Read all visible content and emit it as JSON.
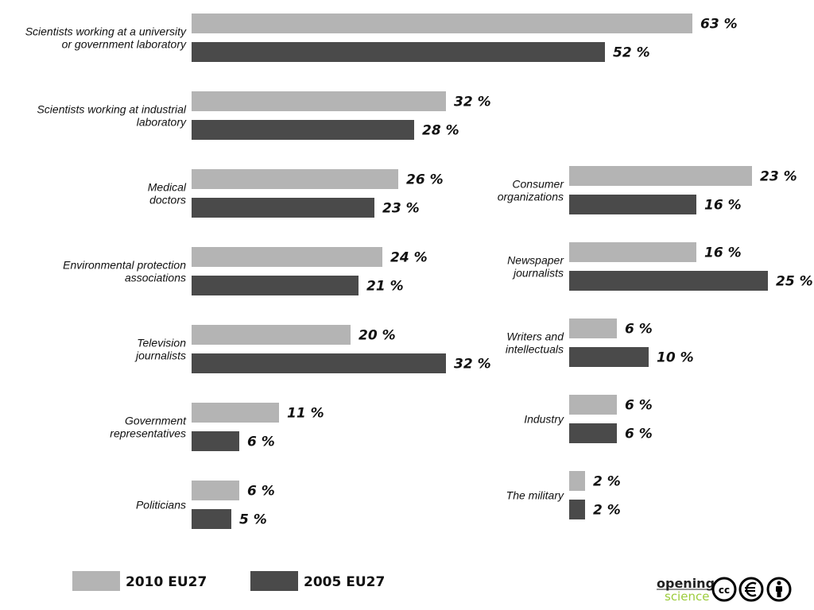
{
  "chart_data": {
    "type": "bar",
    "orientation": "horizontal",
    "value_suffix": " %",
    "series": [
      {
        "name": "2010 EU27",
        "color": "#b4b4b4"
      },
      {
        "name": "2005 EU27",
        "color": "#4a4a4a"
      }
    ],
    "groups": [
      {
        "column": "left",
        "categories": [
          {
            "label": [
              "Scientists working at a university",
              "or government laboratory"
            ],
            "values": [
              63,
              52
            ]
          },
          {
            "label": [
              "Scientists working at industrial",
              "laboratory"
            ],
            "values": [
              32,
              28
            ]
          },
          {
            "label": [
              "Medical",
              "doctors"
            ],
            "values": [
              26,
              23
            ]
          },
          {
            "label": [
              "Environmental protection",
              "associations"
            ],
            "values": [
              24,
              21
            ]
          },
          {
            "label": [
              "Television",
              "journalists"
            ],
            "values": [
              20,
              32
            ]
          },
          {
            "label": [
              "Government",
              "representatives"
            ],
            "values": [
              11,
              6
            ]
          },
          {
            "label": [
              "Politicians"
            ],
            "values": [
              6,
              5
            ]
          }
        ]
      },
      {
        "column": "right",
        "categories": [
          {
            "label": [
              "Consumer",
              "organizations"
            ],
            "values": [
              23,
              16
            ]
          },
          {
            "label": [
              "Newspaper",
              "journalists"
            ],
            "values": [
              16,
              25
            ]
          },
          {
            "label": [
              "Writers and",
              "intellectuals"
            ],
            "values": [
              6,
              10
            ]
          },
          {
            "label": [
              "Industry"
            ],
            "values": [
              6,
              6
            ]
          },
          {
            "label": [
              "The military"
            ],
            "values": [
              2,
              2
            ]
          }
        ]
      }
    ],
    "legend": {
      "placement": "bottom-left"
    },
    "grid": false
  },
  "branding": {
    "logo_word1": "opening",
    "logo_word2": "science",
    "license_icons": [
      "cc-icon",
      "non-commercial-icon",
      "attribution-icon"
    ],
    "cc_text": "cc"
  }
}
